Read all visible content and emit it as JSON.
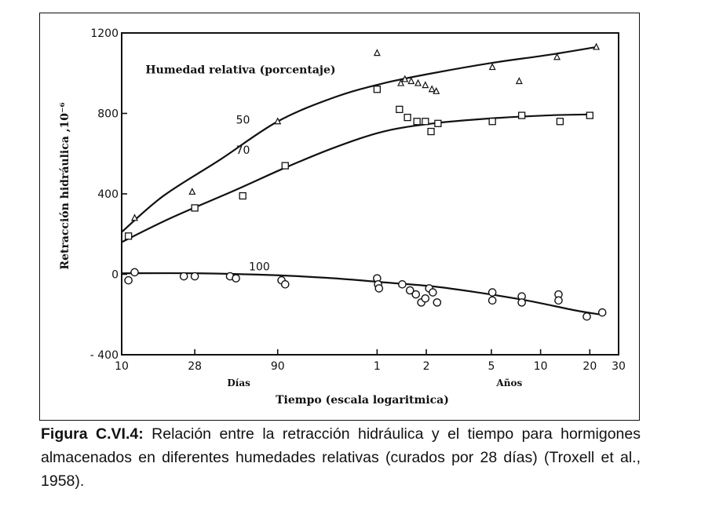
{
  "chart_data": {
    "type": "scatter",
    "x_scale": "log",
    "xlim_days": [
      10,
      10950
    ],
    "ylim": [
      -400,
      1200
    ],
    "yticks": [
      1200,
      800,
      400,
      0,
      -400
    ],
    "yticks_labels": [
      "1200",
      "800",
      "400",
      "0",
      "- 400"
    ],
    "ylabel": "Retracción hidráulica ,10⁻⁶",
    "xlabel": "Tiempo (escala logaritmica)",
    "unit_labels": {
      "days": "Días",
      "years": "Años"
    },
    "xticks": [
      {
        "label": "10",
        "days": 10
      },
      {
        "label": "28",
        "days": 28
      },
      {
        "label": "90",
        "days": 90
      },
      {
        "label": "1",
        "days": 365
      },
      {
        "label": "2",
        "days": 730
      },
      {
        "label": "5",
        "days": 1825
      },
      {
        "label": "10",
        "days": 3650
      },
      {
        "label": "20",
        "days": 7300
      },
      {
        "label": "30",
        "days": 10950
      }
    ],
    "legend_title": "Humedad relativa (porcentaje)",
    "grid": false,
    "series": [
      {
        "name": "50",
        "marker": "triangle",
        "points": [
          {
            "days": 12,
            "y": 280
          },
          {
            "days": 27,
            "y": 410
          },
          {
            "days": 90,
            "y": 760
          },
          {
            "days": 365,
            "y": 1100
          },
          {
            "days": 510,
            "y": 950
          },
          {
            "days": 540,
            "y": 970
          },
          {
            "days": 590,
            "y": 960
          },
          {
            "days": 650,
            "y": 950
          },
          {
            "days": 720,
            "y": 940
          },
          {
            "days": 790,
            "y": 920
          },
          {
            "days": 840,
            "y": 910
          },
          {
            "days": 1850,
            "y": 1030
          },
          {
            "days": 2700,
            "y": 960
          },
          {
            "days": 4600,
            "y": 1080
          },
          {
            "days": 8000,
            "y": 1130
          }
        ],
        "curve": [
          {
            "days": 10,
            "y": 210
          },
          {
            "days": 18,
            "y": 390
          },
          {
            "days": 40,
            "y": 570
          },
          {
            "days": 90,
            "y": 760
          },
          {
            "days": 200,
            "y": 880
          },
          {
            "days": 400,
            "y": 950
          },
          {
            "days": 800,
            "y": 1000
          },
          {
            "days": 1800,
            "y": 1050
          },
          {
            "days": 4000,
            "y": 1090
          },
          {
            "days": 8000,
            "y": 1130
          }
        ]
      },
      {
        "name": "70",
        "marker": "square",
        "points": [
          {
            "days": 11,
            "y": 190
          },
          {
            "days": 28,
            "y": 330
          },
          {
            "days": 55,
            "y": 390
          },
          {
            "days": 100,
            "y": 540
          },
          {
            "days": 365,
            "y": 920
          },
          {
            "days": 500,
            "y": 820
          },
          {
            "days": 560,
            "y": 780
          },
          {
            "days": 640,
            "y": 760
          },
          {
            "days": 720,
            "y": 760
          },
          {
            "days": 780,
            "y": 710
          },
          {
            "days": 860,
            "y": 750
          },
          {
            "days": 1850,
            "y": 760
          },
          {
            "days": 2800,
            "y": 790
          },
          {
            "days": 4800,
            "y": 760
          },
          {
            "days": 7300,
            "y": 790
          }
        ],
        "curve": [
          {
            "days": 10,
            "y": 160
          },
          {
            "days": 20,
            "y": 280
          },
          {
            "days": 50,
            "y": 420
          },
          {
            "days": 100,
            "y": 530
          },
          {
            "days": 200,
            "y": 630
          },
          {
            "days": 400,
            "y": 710
          },
          {
            "days": 800,
            "y": 750
          },
          {
            "days": 1800,
            "y": 775
          },
          {
            "days": 4000,
            "y": 790
          },
          {
            "days": 7500,
            "y": 795
          }
        ]
      },
      {
        "name": "100",
        "marker": "circle",
        "points": [
          {
            "days": 11,
            "y": -30
          },
          {
            "days": 12,
            "y": 10
          },
          {
            "days": 24,
            "y": -10
          },
          {
            "days": 28,
            "y": -10
          },
          {
            "days": 46,
            "y": -10
          },
          {
            "days": 50,
            "y": -20
          },
          {
            "days": 95,
            "y": -30
          },
          {
            "days": 100,
            "y": -50
          },
          {
            "days": 365,
            "y": -20
          },
          {
            "days": 370,
            "y": -50
          },
          {
            "days": 375,
            "y": -70
          },
          {
            "days": 520,
            "y": -50
          },
          {
            "days": 580,
            "y": -80
          },
          {
            "days": 630,
            "y": -100
          },
          {
            "days": 680,
            "y": -140
          },
          {
            "days": 720,
            "y": -120
          },
          {
            "days": 760,
            "y": -70
          },
          {
            "days": 800,
            "y": -90
          },
          {
            "days": 850,
            "y": -140
          },
          {
            "days": 1850,
            "y": -90
          },
          {
            "days": 1850,
            "y": -130
          },
          {
            "days": 2800,
            "y": -110
          },
          {
            "days": 2800,
            "y": -140
          },
          {
            "days": 4700,
            "y": -100
          },
          {
            "days": 4700,
            "y": -130
          },
          {
            "days": 7000,
            "y": -210
          },
          {
            "days": 8700,
            "y": -190
          }
        ],
        "curve": [
          {
            "days": 10,
            "y": 5
          },
          {
            "days": 30,
            "y": 5
          },
          {
            "days": 90,
            "y": -5
          },
          {
            "days": 200,
            "y": -20
          },
          {
            "days": 400,
            "y": -40
          },
          {
            "days": 800,
            "y": -60
          },
          {
            "days": 1500,
            "y": -90
          },
          {
            "days": 3000,
            "y": -130
          },
          {
            "days": 6000,
            "y": -180
          },
          {
            "days": 8500,
            "y": -200
          }
        ]
      }
    ]
  },
  "caption": {
    "label": "Figura C.VI.4:",
    "text": "  Relación entre la retracción hidráulica y el tiempo para hormigones almacenados en diferentes humedades relativas (curados por 28 días) (Troxell et al., 1958)."
  }
}
